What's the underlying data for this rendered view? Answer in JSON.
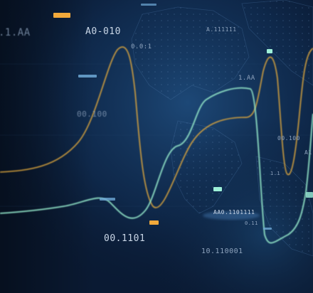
{
  "labels": {
    "l1": ".1.AA",
    "l2": "A0-010",
    "l3": "0.0:1",
    "l4": "A.111111",
    "l5": "1.AA",
    "l6": "00.100",
    "l7": "00.100",
    "l8": "AA0.1101111",
    "l9": "00.1101",
    "l10": "10.110001",
    "l11": "0.11",
    "l12": "1.1",
    "l13": "A1"
  },
  "colors": {
    "background": "#0a1a33",
    "orange_line": "#e0a83c",
    "teal_line": "#8ee0c4",
    "orange_tick": "#f2a93b",
    "blue_tick": "#6fa9d6",
    "mint_tick": "#9ef0d8"
  }
}
